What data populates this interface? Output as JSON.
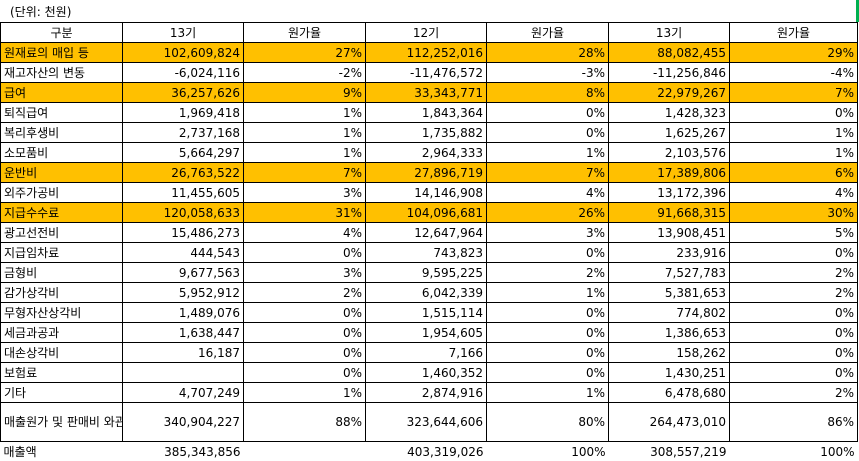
{
  "unit_note": "(단위: 천원)",
  "headers": [
    "구분",
    "13기",
    "원가율",
    "12기",
    "원가율",
    "13기",
    "원가율"
  ],
  "rows": [
    {
      "label": "원재료의 매입 등",
      "v1": "102,609,824",
      "r1": "27%",
      "v2": "112,252,016",
      "r2": "28%",
      "v3": "88,082,455",
      "r3": "29%",
      "highlight": true
    },
    {
      "label": "재고자산의 변동",
      "v1": "-6,024,116",
      "r1": "-2%",
      "v2": "-11,476,572",
      "r2": "-3%",
      "v3": "-11,256,846",
      "r3": "-4%",
      "highlight": false
    },
    {
      "label": "급여",
      "v1": "36,257,626",
      "r1": "9%",
      "v2": "33,343,771",
      "r2": "8%",
      "v3": "22,979,267",
      "r3": "7%",
      "highlight": true
    },
    {
      "label": "퇴직급여",
      "v1": "1,969,418",
      "r1": "1%",
      "v2": "1,843,364",
      "r2": "0%",
      "v3": "1,428,323",
      "r3": "0%",
      "highlight": false
    },
    {
      "label": "복리후생비",
      "v1": "2,737,168",
      "r1": "1%",
      "v2": "1,735,882",
      "r2": "0%",
      "v3": "1,625,267",
      "r3": "1%",
      "highlight": false
    },
    {
      "label": "소모품비",
      "v1": "5,664,297",
      "r1": "1%",
      "v2": "2,964,333",
      "r2": "1%",
      "v3": "2,103,576",
      "r3": "1%",
      "highlight": false
    },
    {
      "label": "운반비",
      "v1": "26,763,522",
      "r1": "7%",
      "v2": "27,896,719",
      "r2": "7%",
      "v3": "17,389,806",
      "r3": "6%",
      "highlight": true
    },
    {
      "label": "외주가공비",
      "v1": "11,455,605",
      "r1": "3%",
      "v2": "14,146,908",
      "r2": "4%",
      "v3": "13,172,396",
      "r3": "4%",
      "highlight": false
    },
    {
      "label": "지급수수료",
      "v1": "120,058,633",
      "r1": "31%",
      "v2": "104,096,681",
      "r2": "26%",
      "v3": "91,668,315",
      "r3": "30%",
      "highlight": true
    },
    {
      "label": "광고선전비",
      "v1": "15,486,273",
      "r1": "4%",
      "v2": "12,647,964",
      "r2": "3%",
      "v3": "13,908,451",
      "r3": "5%",
      "highlight": false
    },
    {
      "label": "지급임차료",
      "v1": "444,543",
      "r1": "0%",
      "v2": "743,823",
      "r2": "0%",
      "v3": "233,916",
      "r3": "0%",
      "highlight": false
    },
    {
      "label": "금형비",
      "v1": "9,677,563",
      "r1": "3%",
      "v2": "9,595,225",
      "r2": "2%",
      "v3": "7,527,783",
      "r3": "2%",
      "highlight": false
    },
    {
      "label": "감가상각비",
      "v1": "5,952,912",
      "r1": "2%",
      "v2": "6,042,339",
      "r2": "1%",
      "v3": "5,381,653",
      "r3": "2%",
      "highlight": false
    },
    {
      "label": "무형자산상각비",
      "v1": "1,489,076",
      "r1": "0%",
      "v2": "1,515,114",
      "r2": "0%",
      "v3": "774,802",
      "r3": "0%",
      "highlight": false
    },
    {
      "label": "세금과공과",
      "v1": "1,638,447",
      "r1": "0%",
      "v2": "1,954,605",
      "r2": "0%",
      "v3": "1,386,653",
      "r3": "0%",
      "highlight": false
    },
    {
      "label": "대손상각비",
      "v1": "16,187",
      "r1": "0%",
      "v2": "7,166",
      "r2": "0%",
      "v3": "158,262",
      "r3": "0%",
      "highlight": false
    },
    {
      "label": "보험료",
      "v1": "",
      "r1": "0%",
      "v2": "1,460,352",
      "r2": "0%",
      "v3": "1,430,251",
      "r3": "0%",
      "highlight": false
    },
    {
      "label": "기타",
      "v1": "4,707,249",
      "r1": "1%",
      "v2": "2,874,916",
      "r2": "1%",
      "v3": "6,478,680",
      "r3": "2%",
      "highlight": false
    },
    {
      "label": "매출원가 및 판매비 와관리비 합계",
      "v1": "340,904,227",
      "r1": "88%",
      "v2": "323,644,606",
      "r2": "80%",
      "v3": "264,473,010",
      "r3": "86%",
      "highlight": false,
      "tall": true
    }
  ],
  "sales_row": {
    "label": "매출액",
    "v1": "385,343,856",
    "r1": "",
    "v2": "403,319,026",
    "r2": "100%",
    "v3": "308,557,219",
    "r3": "100%"
  },
  "colors": {
    "highlight": "#ffc000",
    "corner_mark": "#00b050"
  }
}
